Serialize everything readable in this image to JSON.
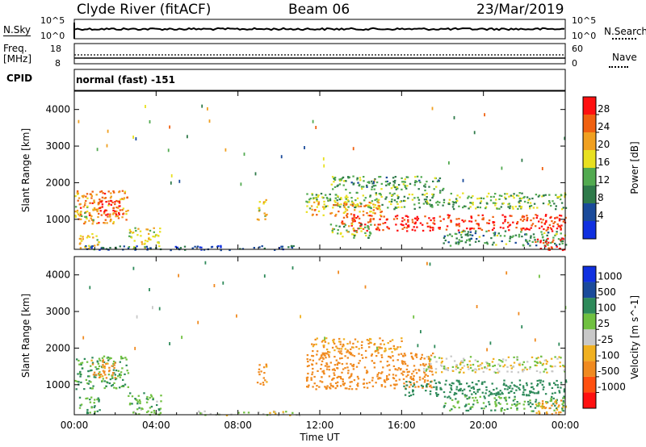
{
  "header": {
    "station": "Clyde River (fitACF)",
    "beam": "Beam 06",
    "date": "23/Mar/2019"
  },
  "top_panels": {
    "nsky_label": "N.Sky",
    "nsky_ticks": [
      "10^5",
      "10^0"
    ],
    "nsearch_label": "N.Search",
    "nsearch_ticks": [
      "10^5",
      "10^0"
    ],
    "freq_label_1": "Freq.",
    "freq_label_2": "[MHz]",
    "freq_ticks": [
      "18",
      "8"
    ],
    "nave_label": "Nave",
    "nave_ticks": [
      "60",
      "0"
    ],
    "cpid_label": "CPID",
    "cpid_value": "normal (fast) -151"
  },
  "colors": {
    "power_scale": [
      "#1030e0",
      "#1a4a9a",
      "#2f7a4a",
      "#52aa50",
      "#e8e020",
      "#f0a020",
      "#f06010",
      "#ff1010"
    ],
    "velocity_scale": [
      "#ff1010",
      "#ff5010",
      "#f08a20",
      "#f0b020",
      "#c8c8c8",
      "#70c040",
      "#2e8a5a",
      "#1a4a9a",
      "#1030e0"
    ]
  },
  "chart_data": [
    {
      "type": "heatmap",
      "title": "",
      "xlabel": "Time UT",
      "ylabel": "Slant Range [km]",
      "xlim": [
        0,
        24
      ],
      "ylim": [
        180,
        4500
      ],
      "x_ticks": [
        "00:00",
        "04:00",
        "08:00",
        "12:00",
        "16:00",
        "20:00",
        "00:00"
      ],
      "y_ticks": [
        "1000",
        "2000",
        "3000",
        "4000"
      ],
      "colorbar_label": "Power [dB]",
      "colorbar_ticks": [
        "4",
        "8",
        "12",
        "16",
        "20",
        "24",
        "28"
      ],
      "regions": [
        {
          "t0": 0.0,
          "t1": 2.6,
          "r0": 900,
          "r1": 1800,
          "value": 24
        },
        {
          "t0": 1.0,
          "t1": 2.2,
          "r0": 1100,
          "r1": 1550,
          "value": 30
        },
        {
          "t0": 0.0,
          "t1": 1.0,
          "r0": 1000,
          "r1": 1400,
          "value": 18
        },
        {
          "t0": 0.2,
          "t1": 1.2,
          "r0": 200,
          "r1": 700,
          "value": 20
        },
        {
          "t0": 2.6,
          "t1": 4.2,
          "r0": 200,
          "r1": 800,
          "value": 18
        },
        {
          "t0": 0.5,
          "t1": 11.0,
          "r0": 180,
          "r1": 300,
          "value": 6
        },
        {
          "t0": 8.9,
          "t1": 9.4,
          "r0": 1000,
          "r1": 1600,
          "value": 20
        },
        {
          "t0": 11.3,
          "t1": 24.0,
          "r0": 1300,
          "r1": 1750,
          "value": 14
        },
        {
          "t0": 11.3,
          "t1": 15.0,
          "r0": 1100,
          "r1": 1500,
          "value": 22
        },
        {
          "t0": 12.5,
          "t1": 18.0,
          "r0": 1800,
          "r1": 2200,
          "value": 12
        },
        {
          "t0": 13.0,
          "t1": 24.0,
          "r0": 700,
          "r1": 1150,
          "value": 29
        },
        {
          "t0": 12.5,
          "t1": 14.5,
          "r0": 500,
          "r1": 900,
          "value": 16
        },
        {
          "t0": 18.0,
          "t1": 24.0,
          "r0": 300,
          "r1": 700,
          "value": 12
        },
        {
          "t0": 22.5,
          "t1": 24.0,
          "r0": 180,
          "r1": 500,
          "value": 29
        }
      ]
    },
    {
      "type": "heatmap",
      "title": "",
      "xlabel": "Time UT",
      "ylabel": "Slant Range [km]",
      "xlim": [
        0,
        24
      ],
      "ylim": [
        180,
        4500
      ],
      "x_ticks": [
        "00:00",
        "04:00",
        "08:00",
        "12:00",
        "16:00",
        "20:00",
        "00:00"
      ],
      "y_ticks": [
        "1000",
        "2000",
        "3000",
        "4000"
      ],
      "colorbar_label": "Velocity [m s^-1]",
      "colorbar_ticks": [
        "1000",
        "500",
        "100",
        "25",
        "-25",
        "-100",
        "-500",
        "-1000"
      ],
      "regions": [
        {
          "t0": 0.0,
          "t1": 2.6,
          "r0": 900,
          "r1": 1800,
          "value": 100
        },
        {
          "t0": 0.8,
          "t1": 2.0,
          "r0": 1200,
          "r1": 1700,
          "value": -150
        },
        {
          "t0": 0.2,
          "t1": 1.2,
          "r0": 200,
          "r1": 700,
          "value": 100
        },
        {
          "t0": 2.6,
          "t1": 4.2,
          "r0": 200,
          "r1": 800,
          "value": 80
        },
        {
          "t0": 6.0,
          "t1": 11.0,
          "r0": 180,
          "r1": 300,
          "value": 10
        },
        {
          "t0": 8.9,
          "t1": 9.4,
          "r0": 1000,
          "r1": 1600,
          "value": -150
        },
        {
          "t0": 11.3,
          "t1": 17.5,
          "r0": 900,
          "r1": 1900,
          "value": -200
        },
        {
          "t0": 11.5,
          "t1": 16.0,
          "r0": 1900,
          "r1": 2300,
          "value": -100
        },
        {
          "t0": 17.0,
          "t1": 24.0,
          "r0": 1350,
          "r1": 1800,
          "value": 0
        },
        {
          "t0": 16.0,
          "t1": 24.0,
          "r0": 700,
          "r1": 1150,
          "value": 300
        },
        {
          "t0": 18.0,
          "t1": 24.0,
          "r0": 300,
          "r1": 700,
          "value": 100
        },
        {
          "t0": 22.5,
          "t1": 24.0,
          "r0": 200,
          "r1": 600,
          "value": -100
        }
      ]
    }
  ]
}
